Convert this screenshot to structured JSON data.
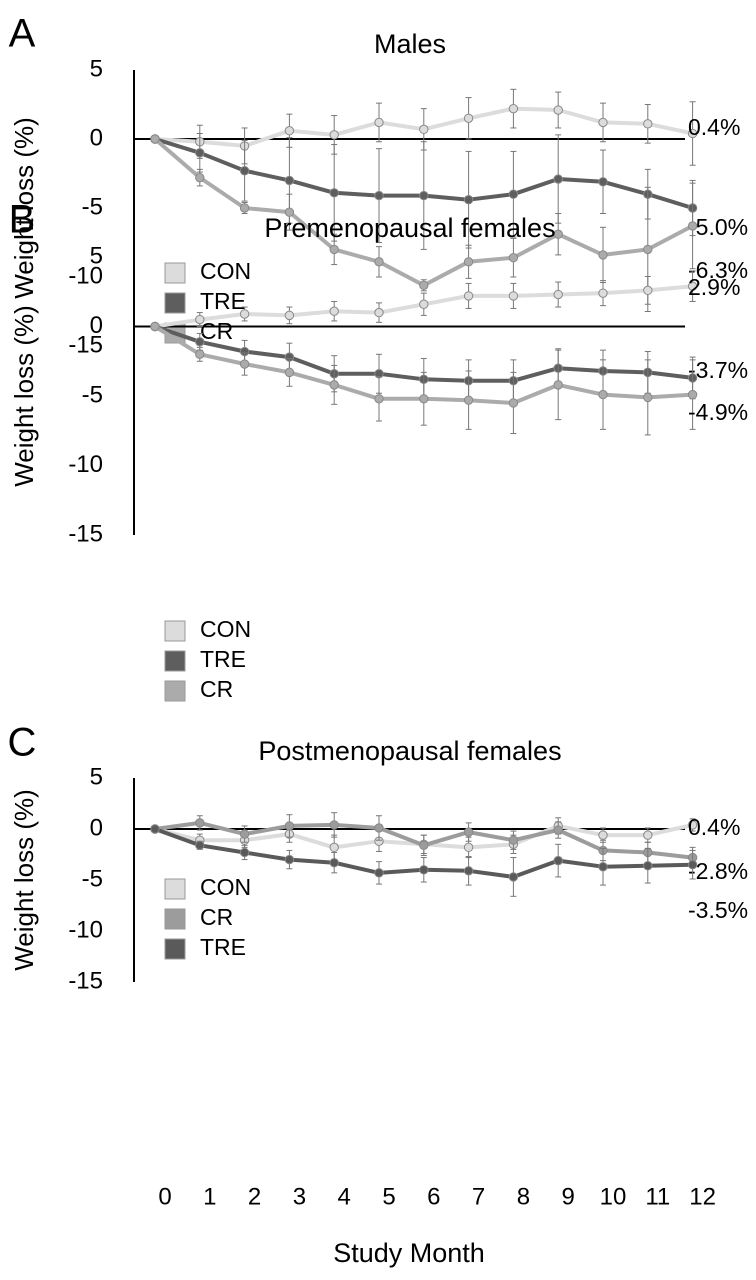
{
  "x_axis_label": "Study Month",
  "colors": {
    "CON": "#dcdcdc",
    "TRE": "#5e5e5e",
    "CR": "#ababab",
    "CR_C": "#9c9c9c",
    "TRE_C": "#5a5a5a"
  },
  "chart_data": [
    {
      "type": "line",
      "panel_letter": "A",
      "title": "Males",
      "ylabel": "Weight loss (%)",
      "ylim": [
        -15,
        5
      ],
      "yticks": [
        5,
        0,
        -5,
        -10,
        -15
      ],
      "x": [
        0,
        1,
        2,
        3,
        4,
        5,
        6,
        7,
        8,
        9,
        10,
        11,
        12
      ],
      "legend_position": "bottom-left",
      "series": [
        {
          "name": "CON",
          "color_key": "CON",
          "values": [
            0,
            -0.2,
            -0.5,
            0.6,
            0.3,
            1.2,
            0.7,
            1.5,
            2.2,
            2.1,
            1.2,
            1.1,
            0.4
          ],
          "errors": [
            0,
            1.2,
            1.3,
            1.2,
            1.4,
            1.4,
            1.5,
            1.5,
            1.4,
            1.3,
            1.4,
            1.4,
            2.3
          ],
          "end_label": "0.4%"
        },
        {
          "name": "TRE",
          "color_key": "TRE",
          "values": [
            0,
            -1.0,
            -2.3,
            -3.0,
            -3.9,
            -4.1,
            -4.1,
            -4.4,
            -4.0,
            -2.9,
            -3.1,
            -4.0,
            -5.0
          ],
          "errors": [
            0,
            1.4,
            2.2,
            3.1,
            3.5,
            3.4,
            3.9,
            3.5,
            3.1,
            3.2,
            2.3,
            1.8,
            2.0
          ],
          "end_label": "-5.0%"
        },
        {
          "name": "CR",
          "color_key": "CR",
          "values": [
            0,
            -2.8,
            -5.0,
            -5.3,
            -8.0,
            -8.9,
            -10.6,
            -8.9,
            -8.6,
            -6.9,
            -8.4,
            -8.0,
            -6.3
          ],
          "errors": [
            0,
            0.6,
            0.4,
            1.3,
            1.1,
            1.1,
            0.4,
            1.2,
            1.4,
            1.5,
            2.0,
            4.5,
            3.1
          ],
          "end_label": "-6.3%"
        }
      ]
    },
    {
      "type": "line",
      "panel_letter": "B",
      "title": "Premenopausal females",
      "ylabel": "Weight loss (%)",
      "ylim": [
        -15,
        5
      ],
      "yticks": [
        5,
        0,
        -5,
        -10,
        -15
      ],
      "x": [
        0,
        1,
        2,
        3,
        4,
        5,
        6,
        7,
        8,
        9,
        10,
        11,
        12
      ],
      "legend_position": "bottom-left",
      "series": [
        {
          "name": "CON",
          "color_key": "CON",
          "values": [
            0,
            0.5,
            0.9,
            0.8,
            1.1,
            1.0,
            1.6,
            2.2,
            2.2,
            2.3,
            2.4,
            2.6,
            2.9
          ],
          "errors": [
            0,
            0.5,
            0.5,
            0.6,
            0.7,
            0.7,
            0.8,
            0.9,
            0.9,
            0.9,
            0.9,
            1.0,
            1.1
          ],
          "end_label": "2.9%"
        },
        {
          "name": "TRE",
          "color_key": "TRE",
          "values": [
            0,
            -1.1,
            -1.8,
            -2.2,
            -3.4,
            -3.4,
            -3.8,
            -3.9,
            -3.9,
            -3.0,
            -3.2,
            -3.3,
            -3.7
          ],
          "errors": [
            0,
            0.6,
            0.8,
            1.0,
            1.3,
            1.4,
            1.5,
            1.5,
            1.5,
            1.4,
            1.5,
            1.5,
            1.5
          ],
          "end_label": "-3.7%"
        },
        {
          "name": "CR",
          "color_key": "CR",
          "values": [
            0,
            -2.0,
            -2.7,
            -3.3,
            -4.2,
            -5.2,
            -5.2,
            -5.3,
            -5.5,
            -4.2,
            -4.9,
            -5.1,
            -4.9
          ],
          "errors": [
            0,
            0.5,
            0.8,
            1.0,
            1.4,
            1.6,
            1.9,
            2.1,
            2.2,
            2.5,
            2.5,
            2.7,
            2.5
          ],
          "end_label": "-4.9%"
        }
      ]
    },
    {
      "type": "line",
      "panel_letter": "C",
      "title": "Postmenopausal females",
      "ylabel": "Weight loss (%)",
      "ylim": [
        -15,
        5
      ],
      "yticks": [
        5,
        0,
        -5,
        -10,
        -15
      ],
      "x": [
        0,
        1,
        2,
        3,
        4,
        5,
        6,
        7,
        8,
        9,
        10,
        11,
        12
      ],
      "legend_position": "bottom-left",
      "series": [
        {
          "name": "CON",
          "color_key": "CON",
          "values": [
            0,
            -1.1,
            -1.1,
            -0.5,
            -1.8,
            -1.2,
            -1.5,
            -1.8,
            -1.5,
            0.3,
            -0.6,
            -0.6,
            0.4
          ],
          "errors": [
            0,
            0.6,
            0.7,
            0.8,
            1.2,
            1.0,
            0.9,
            1.0,
            0.9,
            0.8,
            0.7,
            0.7,
            0.6
          ],
          "end_label": "0.4%"
        },
        {
          "name": "CR",
          "color_key": "CR_C",
          "values": [
            0,
            0.6,
            -0.5,
            0.3,
            0.4,
            0.1,
            -1.6,
            -0.3,
            -1.1,
            -0.1,
            -2.1,
            -2.3,
            -2.8
          ],
          "errors": [
            0,
            0.7,
            0.8,
            1.1,
            1.2,
            1.2,
            1.0,
            0.9,
            0.9,
            0.8,
            1.0,
            1.0,
            1.0
          ],
          "end_label": "-2.8%"
        },
        {
          "name": "TRE",
          "color_key": "TRE_C",
          "values": [
            0,
            -1.6,
            -2.3,
            -3.0,
            -3.3,
            -4.3,
            -4.0,
            -4.1,
            -4.7,
            -3.1,
            -3.7,
            -3.6,
            -3.5
          ],
          "errors": [
            0,
            0.4,
            0.7,
            0.9,
            1.0,
            1.1,
            1.2,
            1.4,
            1.9,
            1.6,
            1.8,
            1.7,
            1.4
          ],
          "end_label": "-3.5%"
        }
      ]
    }
  ]
}
